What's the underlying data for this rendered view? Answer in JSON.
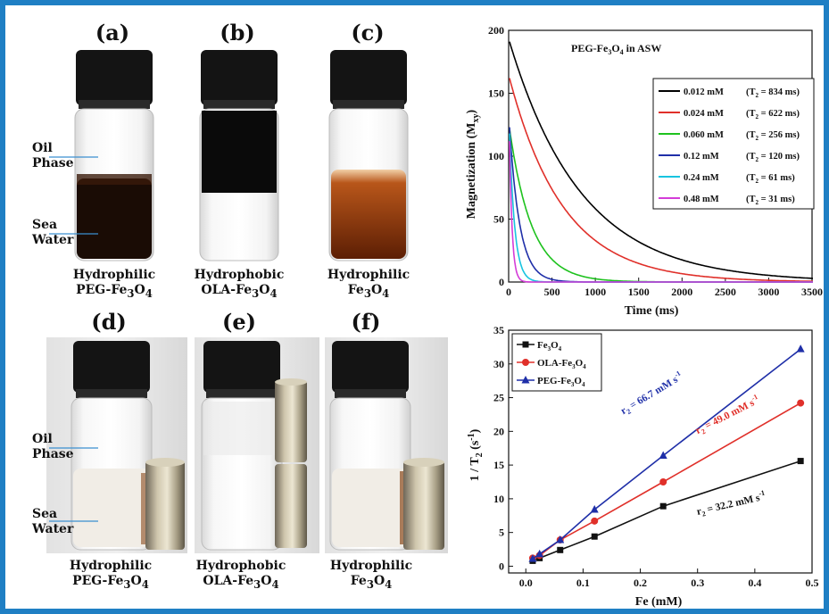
{
  "photos": {
    "panels": [
      {
        "id": "a",
        "label": "(a)",
        "caption_line1": "Hydrophilic",
        "caption_line2": "PEG-Fe",
        "caption_sub": "3",
        "caption_mid": "O",
        "caption_sub2": "4"
      },
      {
        "id": "b",
        "label": "(b)",
        "caption_line1": "Hydrophobic",
        "caption_line2": "OLA-Fe",
        "caption_sub": "3",
        "caption_mid": "O",
        "caption_sub2": "4"
      },
      {
        "id": "c",
        "label": "(c)",
        "caption_line1": "Hydrophilic",
        "caption_line2": "Fe",
        "caption_sub": "3",
        "caption_mid": "O",
        "caption_sub2": "4"
      },
      {
        "id": "d",
        "label": "(d)",
        "caption_line1": "Hydrophilic",
        "caption_line2": "PEG-Fe",
        "caption_sub": "3",
        "caption_mid": "O",
        "caption_sub2": "4"
      },
      {
        "id": "e",
        "label": "(e)",
        "caption_line1": "Hydrophobic",
        "caption_line2": "OLA-Fe",
        "caption_sub": "3",
        "caption_mid": "O",
        "caption_sub2": "4"
      },
      {
        "id": "f",
        "label": "(f)",
        "caption_line1": "Hydrophilic",
        "caption_line2": "Fe",
        "caption_sub": "3",
        "caption_mid": "O",
        "caption_sub2": "4"
      }
    ],
    "side_labels": {
      "oil_line1": "Oil",
      "oil_line2": "Phase",
      "sea_line1": "Sea",
      "sea_line2": "Water"
    },
    "colors": {
      "dark_dispersion": "#1a0c05",
      "black_dispersion": "#0a0a0a",
      "brown_dispersion": "#7a2c08",
      "cap": "#141414",
      "magnet": "#bfb59a"
    }
  },
  "chart_data": [
    {
      "type": "line",
      "title": "PEG-Fe3O4 in ASW",
      "title_parts": {
        "a": "PEG-Fe",
        "b": "3",
        "c": "O",
        "d": "4",
        "e": " in ASW"
      },
      "xlabel": "Time (ms)",
      "ylabel": "Magnetization (M",
      "ylabel_sub": "xy",
      "ylabel_end": ")",
      "xlim": [
        0,
        3500
      ],
      "ylim": [
        0,
        200
      ],
      "xticks": [
        0,
        500,
        1000,
        1500,
        2000,
        2500,
        3000,
        3500
      ],
      "yticks": [
        0,
        50,
        100,
        150,
        200
      ],
      "grid": false,
      "legend_position": "top-right",
      "series": [
        {
          "name": "0.012 mM",
          "t2_label": "(T",
          "t2_sub": "2",
          "t2_value": " = 834 ms)",
          "color": "#000000",
          "m0": 191,
          "t2": 834
        },
        {
          "name": "0.024 mM",
          "t2_label": "(T",
          "t2_sub": "2",
          "t2_value": " = 622 ms)",
          "color": "#e0302a",
          "m0": 162,
          "t2": 622
        },
        {
          "name": "0.060 mM",
          "t2_label": "(T",
          "t2_sub": "2",
          "t2_value": " = 256 ms)",
          "color": "#1ec21e",
          "m0": 122,
          "t2": 256
        },
        {
          "name": "0.12 mM",
          "t2_label": "(T",
          "t2_sub": "2",
          "t2_value": " = 120 ms)",
          "color": "#1f2fa8",
          "m0": 123,
          "t2": 120
        },
        {
          "name": "0.24 mM",
          "t2_label": "(T",
          "t2_sub": "2",
          "t2_value": " = 61 ms)",
          "color": "#18c4e0",
          "m0": 118,
          "t2": 61
        },
        {
          "name": "0.48 mM",
          "t2_label": "(T",
          "t2_sub": "2",
          "t2_value": " = 31 ms)",
          "color": "#d43cd8",
          "m0": 112,
          "t2": 31
        }
      ]
    },
    {
      "type": "line",
      "xlabel": "Fe (mM)",
      "ylabel": "1 / T",
      "ylabel_sub": "2",
      "ylabel_end": " (s",
      "ylabel_sup": "-1",
      "ylabel_close": ")",
      "xlim": [
        -0.03,
        0.5
      ],
      "ylim": [
        -1,
        35
      ],
      "xticks": [
        0.0,
        0.1,
        0.2,
        0.3,
        0.4,
        0.5
      ],
      "xtick_labels": [
        "0.0",
        "0.1",
        "0.2",
        "0.3",
        "0.4",
        "0.5"
      ],
      "yticks": [
        0,
        5,
        10,
        15,
        20,
        25,
        30,
        35
      ],
      "grid": false,
      "legend_position": "top-left",
      "x": [
        0.012,
        0.024,
        0.06,
        0.12,
        0.24,
        0.48
      ],
      "series": [
        {
          "name": "Fe3O4",
          "name_parts": {
            "a": "Fe",
            "b": "3",
            "c": "O",
            "d": "4"
          },
          "color": "#111111",
          "marker": "square",
          "values": [
            0.8,
            1.2,
            2.4,
            4.4,
            8.9,
            15.6
          ]
        },
        {
          "name": "OLA-Fe3O4",
          "name_parts": {
            "a": "OLA-Fe",
            "b": "3",
            "c": "O",
            "d": "4"
          },
          "color": "#e0302a",
          "marker": "circle",
          "values": [
            1.2,
            1.6,
            3.9,
            6.7,
            12.5,
            24.2
          ]
        },
        {
          "name": "PEG-Fe3O4",
          "name_parts": {
            "a": "PEG-Fe",
            "b": "3",
            "c": "O",
            "d": "4"
          },
          "color": "#1f2fa8",
          "marker": "triangle",
          "values": [
            1.1,
            1.8,
            3.9,
            8.4,
            16.4,
            32.2
          ]
        }
      ],
      "annotations": [
        {
          "text_a": "r",
          "text_sub": "2",
          "text_b": " = 66.7 mM",
          "text_sup": " s",
          "text_sup2": "-1",
          "color": "#1f2fa8",
          "x": 0.17,
          "y": 22.5,
          "angle": -31
        },
        {
          "text_a": "r",
          "text_sub": "2",
          "text_b": " = 49.0 mM",
          "text_sup": " s",
          "text_sup2": "-1",
          "color": "#e0302a",
          "x": 0.3,
          "y": 19.6,
          "angle": -27
        },
        {
          "text_a": "r",
          "text_sub": "2",
          "text_b": " = 32.2 mM",
          "text_sup": " s",
          "text_sup2": "-1",
          "color": "#111111",
          "x": 0.3,
          "y": 7.6,
          "angle": -13
        }
      ]
    }
  ]
}
